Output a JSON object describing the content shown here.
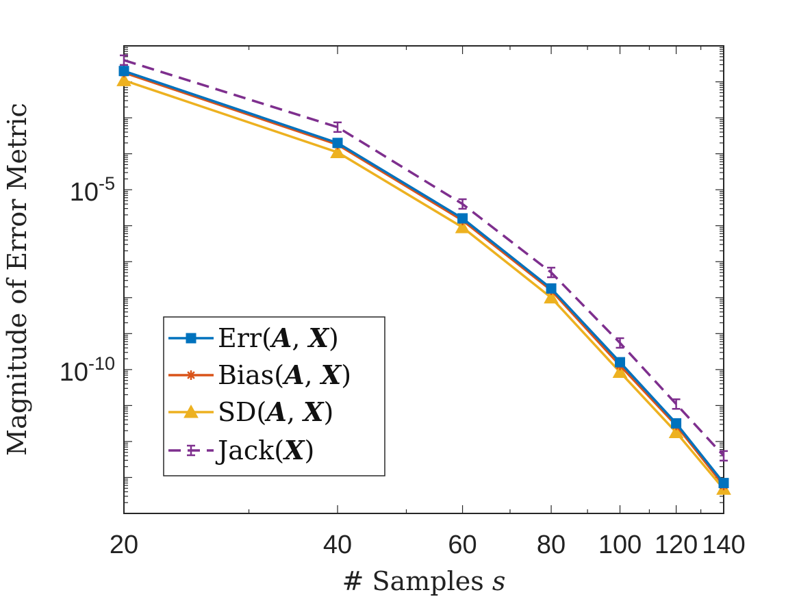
{
  "chart_data": {
    "type": "line",
    "title": "",
    "xlabel": "# Samples s",
    "xlabel_prefix": "# Samples ",
    "xlabel_var": "s",
    "ylabel": "Magnitude of Error Metric",
    "xscale": "log",
    "yscale": "log",
    "xlim": [
      20,
      140
    ],
    "ylim": [
      1e-14,
      0.1
    ],
    "x": [
      20,
      40,
      60,
      80,
      100,
      120,
      140
    ],
    "x_tick_labels": [
      "20",
      "40",
      "60",
      "80",
      "100",
      "120",
      "140"
    ],
    "y_ticks": [
      {
        "value": 1e-05,
        "base": "10",
        "exp": "-5"
      },
      {
        "value": 1e-10,
        "base": "10",
        "exp": "-10"
      }
    ],
    "legend_position": "lower-left",
    "series": [
      {
        "name": "Err(A, X)",
        "func": "Err",
        "args": [
          "A",
          "X"
        ],
        "color": "#0072BD",
        "marker": "square",
        "dash": false,
        "values": [
          0.02,
          0.0002,
          1.6e-06,
          1.8e-08,
          1.6e-10,
          3.2e-12,
          7e-14
        ]
      },
      {
        "name": "Bias(A, X)",
        "func": "Bias",
        "args": [
          "A",
          "X"
        ],
        "color": "#D95319",
        "marker": "asterisk",
        "dash": false,
        "values": [
          0.018,
          0.00018,
          1.4e-06,
          1.6e-08,
          1.3e-10,
          2.8e-12,
          6e-14
        ]
      },
      {
        "name": "SD(A, X)",
        "func": "SD",
        "args": [
          "A",
          "X"
        ],
        "color": "#EDB120",
        "marker": "triangle",
        "dash": false,
        "values": [
          0.011,
          0.00011,
          9e-07,
          1e-08,
          8.5e-11,
          1.8e-12,
          4.8e-14
        ]
      },
      {
        "name": "Jack(X)",
        "func": "Jack",
        "args": [
          "X"
        ],
        "color": "#7E2F8E",
        "marker": "errorbar",
        "dash": true,
        "values": [
          0.04,
          0.00055,
          4e-06,
          5e-08,
          5.5e-10,
          1.1e-11,
          4e-13
        ]
      }
    ]
  }
}
